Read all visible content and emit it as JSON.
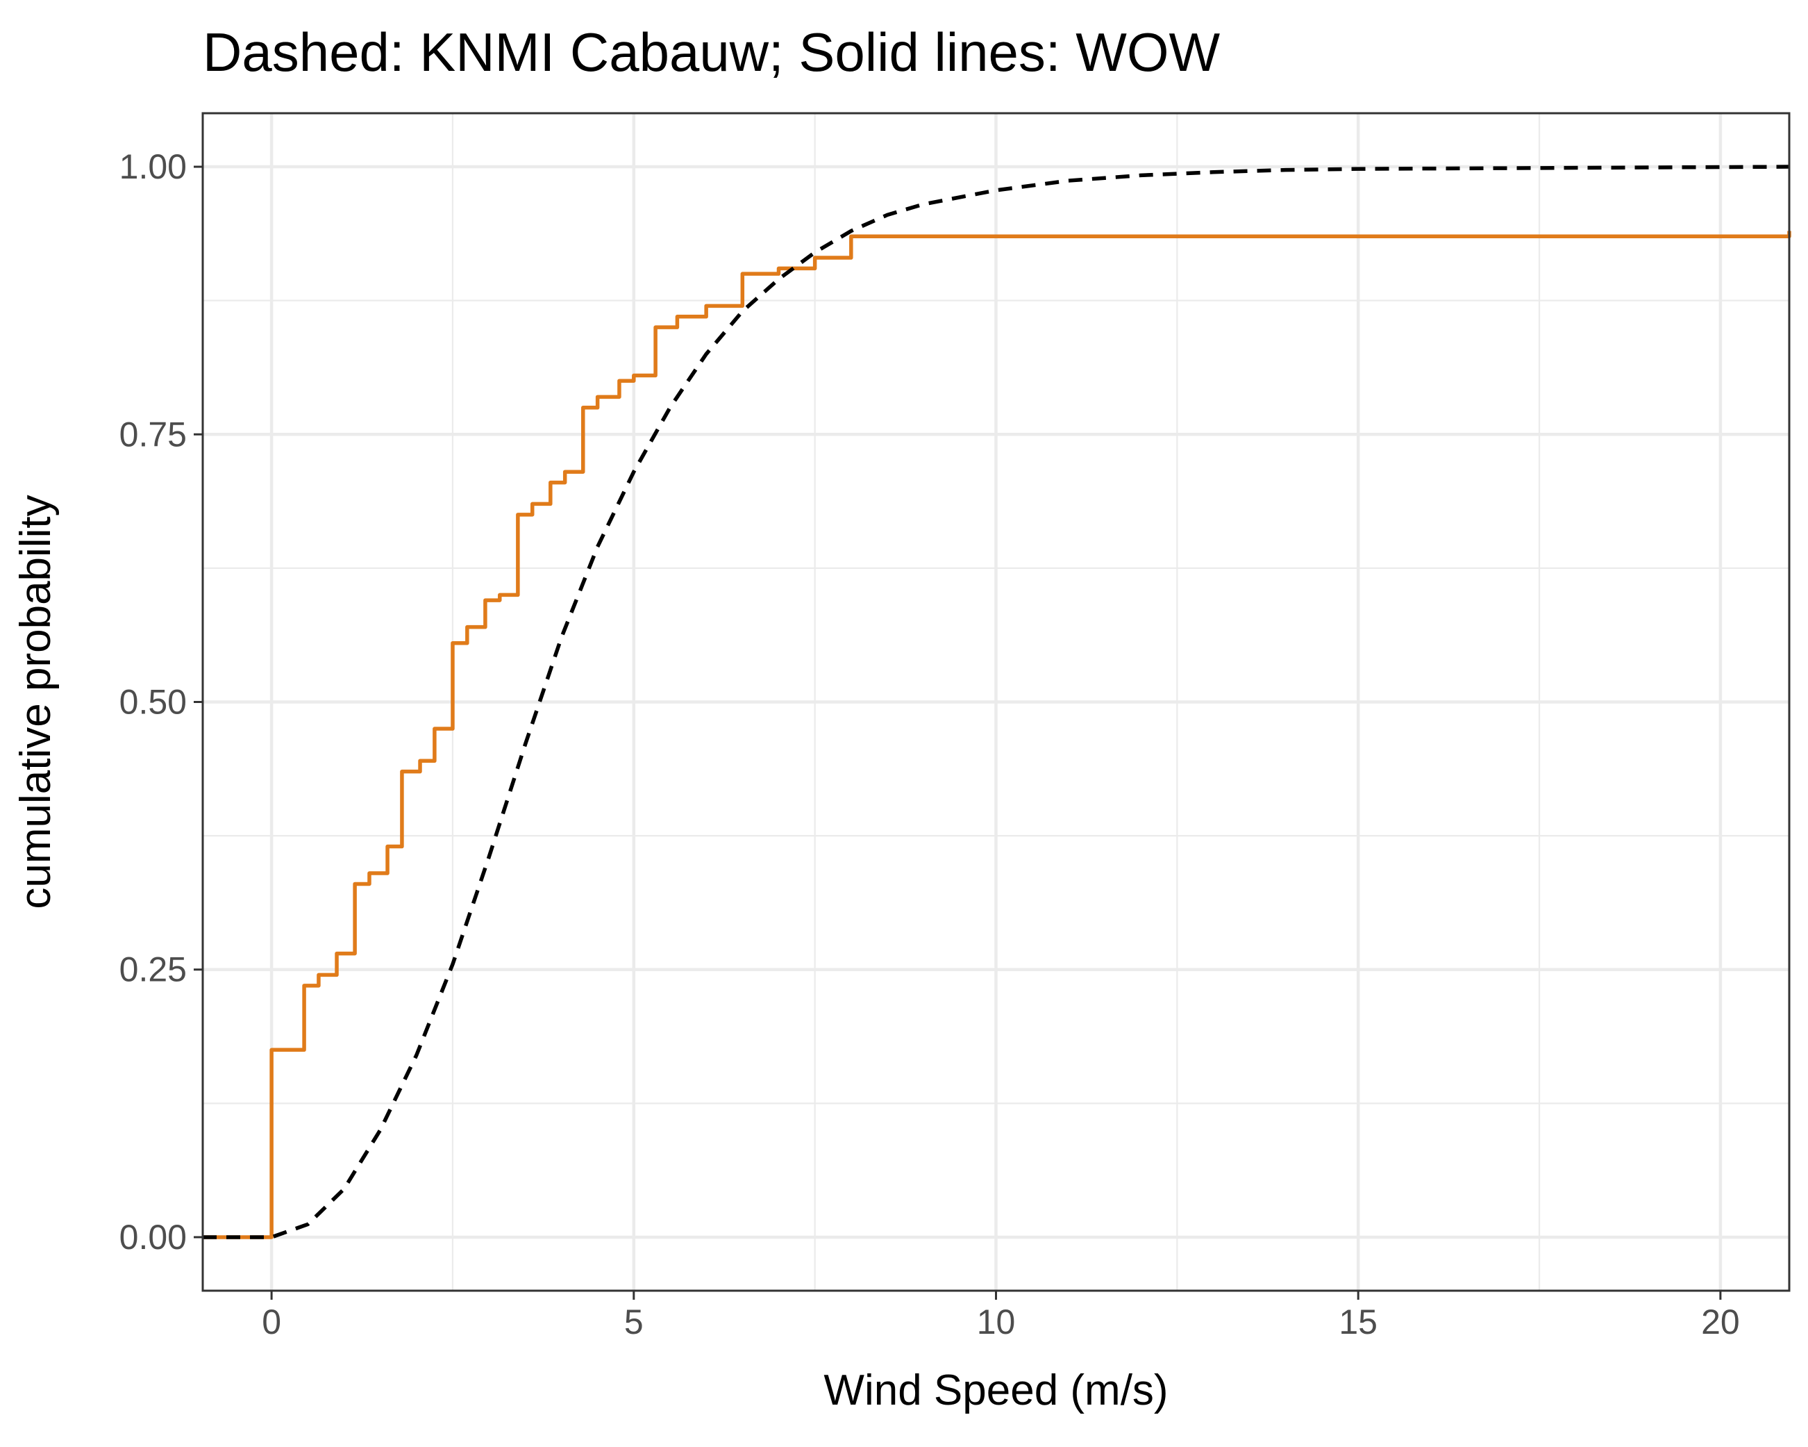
{
  "chart_data": {
    "type": "line",
    "title": "Dashed: KNMI Cabauw; Solid lines: WOW",
    "xlabel": "Wind Speed (m/s)",
    "ylabel": "cumulative probability",
    "xlim": [
      -0.95,
      20.95
    ],
    "ylim": [
      -0.05,
      1.05
    ],
    "x_ticks": [
      0,
      5,
      10,
      15,
      20
    ],
    "x_tick_labels": [
      "0",
      "5",
      "10",
      "15",
      "20"
    ],
    "y_ticks": [
      0,
      0.25,
      0.5,
      0.75,
      1
    ],
    "y_tick_labels": [
      "0.00",
      "0.25",
      "0.50",
      "0.75",
      "1.00"
    ],
    "x_minor": [
      2.5,
      7.5,
      12.5,
      17.5
    ],
    "y_minor": [
      0.125,
      0.375,
      0.625,
      0.875
    ],
    "grid": true,
    "series": [
      {
        "style": "solid",
        "step": true,
        "color": "#e07b1a",
        "x": [
          -0.95,
          0,
          0.45,
          0.65,
          0.9,
          1.15,
          1.35,
          1.6,
          1.8,
          2.05,
          2.25,
          2.5,
          2.7,
          2.95,
          3.15,
          3.4,
          3.6,
          3.85,
          4.05,
          4.3,
          4.5,
          4.8,
          5.0,
          5.3,
          5.6,
          6.0,
          6.5,
          7.0,
          7.5,
          8.0,
          20.95
        ],
        "y": [
          0,
          0.175,
          0.235,
          0.245,
          0.265,
          0.33,
          0.34,
          0.365,
          0.435,
          0.445,
          0.475,
          0.555,
          0.57,
          0.595,
          0.6,
          0.675,
          0.685,
          0.705,
          0.715,
          0.775,
          0.785,
          0.8,
          0.805,
          0.85,
          0.86,
          0.87,
          0.9,
          0.905,
          0.915,
          0.935,
          0.94
        ]
      },
      {
        "style": "dashed",
        "step": false,
        "color": "#000000",
        "x": [
          -0.95,
          0,
          0.5,
          1.0,
          1.5,
          2.0,
          2.5,
          3.0,
          3.5,
          4.0,
          4.5,
          5.0,
          5.5,
          6.0,
          6.5,
          7.0,
          7.5,
          8.0,
          8.5,
          9.0,
          10.0,
          11.0,
          12.0,
          13.0,
          14.0,
          15.0,
          20.95
        ],
        "y": [
          0,
          0,
          0.012,
          0.045,
          0.1,
          0.17,
          0.255,
          0.355,
          0.46,
          0.56,
          0.645,
          0.715,
          0.775,
          0.825,
          0.865,
          0.895,
          0.92,
          0.94,
          0.955,
          0.965,
          0.978,
          0.987,
          0.992,
          0.995,
          0.997,
          0.998,
          1.0
        ]
      }
    ]
  }
}
